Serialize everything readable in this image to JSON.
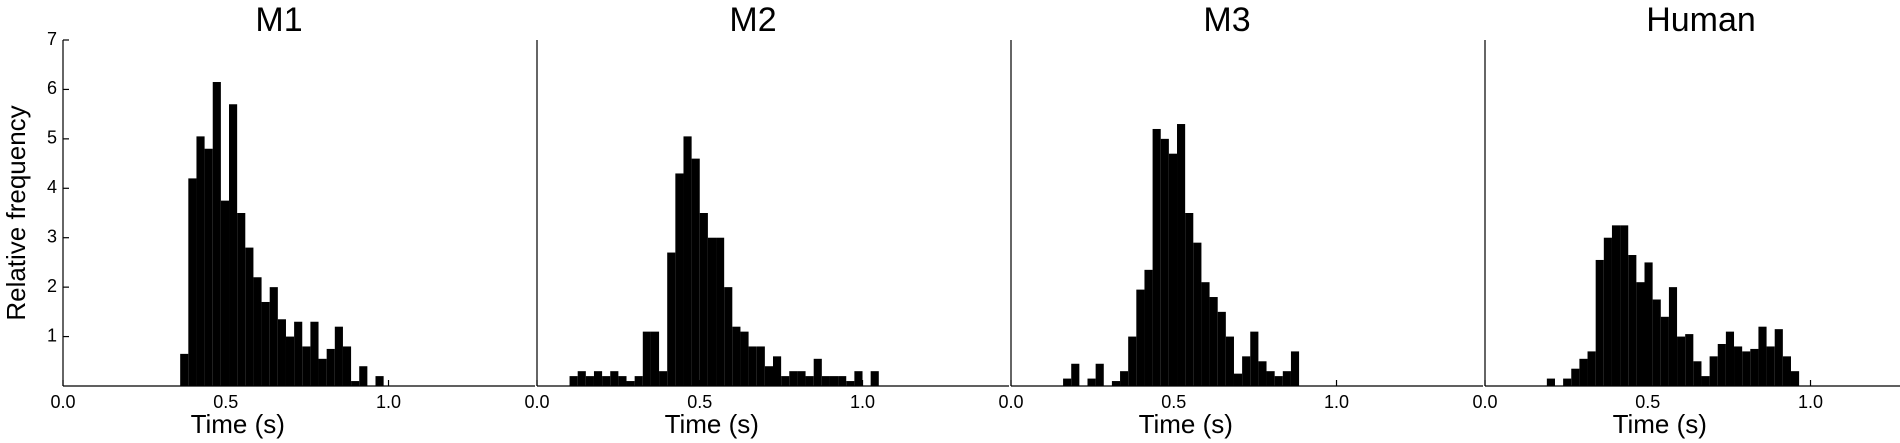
{
  "chart_data": [
    {
      "type": "histogram",
      "title": "M1",
      "xlabel": "Time (s)",
      "ylabel": "Relative frequency",
      "color": "#000000",
      "xlim": [
        0,
        1.45
      ],
      "ylim": [
        0,
        7
      ],
      "xticks": [
        {
          "value": 0,
          "label": "0.0"
        },
        {
          "value": 0.5,
          "label": "0.5"
        },
        {
          "value": 1,
          "label": "1.0"
        }
      ],
      "yticks": [
        1,
        2,
        3,
        4,
        5,
        6,
        7
      ],
      "bins": [
        0.36,
        0.385,
        0.41,
        0.435,
        0.46,
        0.485,
        0.51,
        0.535,
        0.56,
        0.585,
        0.61,
        0.635,
        0.66,
        0.685,
        0.71,
        0.735,
        0.76,
        0.785,
        0.81,
        0.835,
        0.86,
        0.885,
        0.91,
        0.935,
        0.96,
        0.985
      ],
      "values": [
        0.65,
        4.2,
        5.05,
        4.8,
        6.15,
        3.75,
        5.7,
        3.5,
        2.8,
        2.2,
        1.7,
        2.0,
        1.35,
        1.0,
        1.3,
        0.8,
        1.3,
        0.55,
        0.75,
        1.2,
        0.8,
        0.1,
        0.4,
        0,
        0.2
      ]
    },
    {
      "type": "histogram",
      "title": "M2",
      "xlabel": "Time (s)",
      "color": "#000000",
      "xlim": [
        0,
        1.45
      ],
      "ylim": [
        0,
        7
      ],
      "xticks": [
        {
          "value": 0,
          "label": "0.0"
        },
        {
          "value": 0.5,
          "label": "0.5"
        },
        {
          "value": 1,
          "label": "1.0"
        }
      ],
      "bins": [
        0.1,
        0.125,
        0.15,
        0.175,
        0.2,
        0.225,
        0.25,
        0.275,
        0.3,
        0.325,
        0.35,
        0.375,
        0.4,
        0.425,
        0.45,
        0.475,
        0.5,
        0.525,
        0.55,
        0.575,
        0.6,
        0.625,
        0.65,
        0.675,
        0.7,
        0.725,
        0.75,
        0.775,
        0.8,
        0.825,
        0.85,
        0.875,
        0.9,
        0.925,
        0.95,
        0.975,
        1.0,
        1.025,
        1.05
      ],
      "values": [
        0.2,
        0.3,
        0.2,
        0.3,
        0.2,
        0.3,
        0.2,
        0.1,
        0.2,
        1.1,
        1.1,
        0.3,
        2.7,
        4.3,
        5.05,
        4.6,
        3.5,
        3.0,
        3.0,
        2.0,
        1.2,
        1.1,
        0.8,
        0.8,
        0.4,
        0.6,
        0.2,
        0.3,
        0.3,
        0.2,
        0.55,
        0.2,
        0.2,
        0.2,
        0.1,
        0.3,
        0,
        0.3
      ]
    },
    {
      "type": "histogram",
      "title": "M3",
      "xlabel": "Time (s)",
      "color": "#000000",
      "xlim": [
        0,
        1.45
      ],
      "ylim": [
        0,
        7
      ],
      "xticks": [
        {
          "value": 0,
          "label": "0.0"
        },
        {
          "value": 0.5,
          "label": "0.5"
        },
        {
          "value": 1,
          "label": "1.0"
        }
      ],
      "bins": [
        0.16,
        0.185,
        0.21,
        0.235,
        0.26,
        0.285,
        0.31,
        0.335,
        0.36,
        0.385,
        0.41,
        0.435,
        0.46,
        0.485,
        0.51,
        0.535,
        0.56,
        0.585,
        0.61,
        0.635,
        0.66,
        0.685,
        0.71,
        0.735,
        0.76,
        0.785,
        0.81,
        0.835,
        0.86,
        0.885
      ],
      "values": [
        0.15,
        0.45,
        0,
        0.15,
        0.45,
        0,
        0.1,
        0.3,
        1.0,
        1.95,
        2.35,
        5.2,
        5.0,
        4.7,
        5.3,
        3.5,
        2.9,
        2.1,
        1.8,
        1.5,
        1.0,
        0.25,
        0.6,
        1.1,
        0.5,
        0.3,
        0.2,
        0.3,
        0.7
      ]
    },
    {
      "type": "histogram",
      "title": "Human",
      "xlabel": "Time (s)",
      "color": "#000000",
      "xlim": [
        0,
        1.45
      ],
      "ylim": [
        0,
        7
      ],
      "xticks": [
        {
          "value": 0,
          "label": "0.0"
        },
        {
          "value": 0.5,
          "label": "0.5"
        },
        {
          "value": 1,
          "label": "1.0"
        }
      ],
      "bins": [
        0.19,
        0.215,
        0.24,
        0.265,
        0.29,
        0.315,
        0.34,
        0.365,
        0.39,
        0.415,
        0.44,
        0.465,
        0.49,
        0.515,
        0.54,
        0.565,
        0.59,
        0.615,
        0.64,
        0.665,
        0.69,
        0.715,
        0.74,
        0.765,
        0.79,
        0.815,
        0.84,
        0.865,
        0.89,
        0.915,
        0.94,
        0.965
      ],
      "values": [
        0.15,
        0,
        0.15,
        0.35,
        0.55,
        0.7,
        2.55,
        3.0,
        3.25,
        3.25,
        2.65,
        2.1,
        2.5,
        1.75,
        1.4,
        2.0,
        1.0,
        1.05,
        0.5,
        0.2,
        0.6,
        0.85,
        1.1,
        0.8,
        0.7,
        0.75,
        1.2,
        0.8,
        1.15,
        0.6,
        0.3
      ]
    }
  ]
}
